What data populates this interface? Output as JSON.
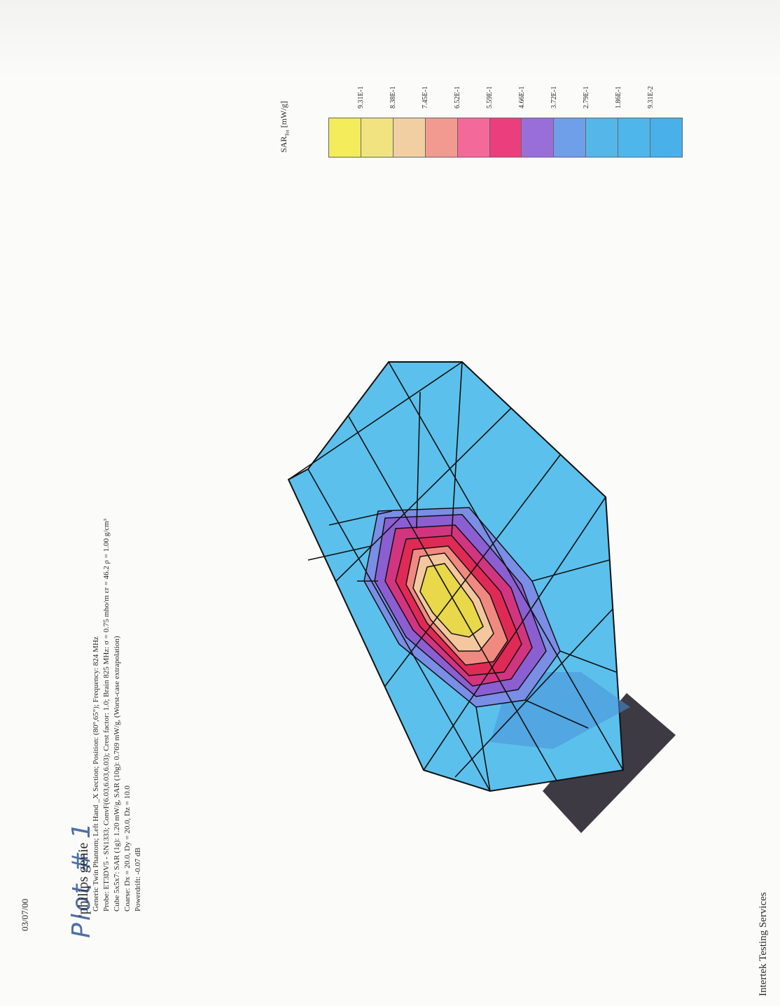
{
  "header": {
    "date": "03/07/00",
    "handwritten": "Plot # 1",
    "title": "philips genie"
  },
  "meta": {
    "line1": "Generic Twin Phantom; Left Hand _X Section; Position: (80°,65°); Frequency: 824 MHz",
    "line2": "Probe: ET3DV5 - SN1333; ConvF(6.03,6.03,6.03); Crest factor: 1.0; Brain 825 MHz: σ = 0.75 mho/m εr = 46.2 ρ = 1.00 g/cm³",
    "line3": "Cube 5x5x7: SAR (1g): 1.20  mW/g, SAR (10g): 0.769  mW/g, (Worst-case extrapolation)",
    "line4": "Coarse: Dx = 20.0, Dy = 20.0, Dz = 10.0",
    "line5": "Powerdrift: -0.07 dB"
  },
  "legend": {
    "title_main": "SAR",
    "title_sub": "Tot",
    "title_unit": "[mW/g]",
    "labels": [
      "9.31E-1",
      "8.38E-1",
      "7.45E-1",
      "6.52E-1",
      "5.59E-1",
      "4.66E-1",
      "3.72E-1",
      "2.79E-1",
      "1.86E-1",
      "9.31E-2"
    ],
    "colors": [
      "#f4ec5a",
      "#f1e480",
      "#f2cfa3",
      "#f39a90",
      "#f36a9a",
      "#ea3f7c",
      "#9a6ed8",
      "#6f9fe8",
      "#55b6ea",
      "#4fb6ec",
      "#49b0ea"
    ]
  },
  "plot_colors": {
    "outer": "#5cc0ec",
    "outer2": "#6ab8ee",
    "ring_blue": "#7a8ee6",
    "ring_purple": "#8b5fd1",
    "ring_magenta": "#d23580",
    "ring_red": "#e02a55",
    "ring_salmon": "#f08a80",
    "ring_peach": "#f4c79e",
    "core_yellow": "#e8d84a",
    "base": "#3d3a44",
    "shadow": "#4a8fd8"
  },
  "footer": {
    "company": "Intertek Testing Services"
  }
}
